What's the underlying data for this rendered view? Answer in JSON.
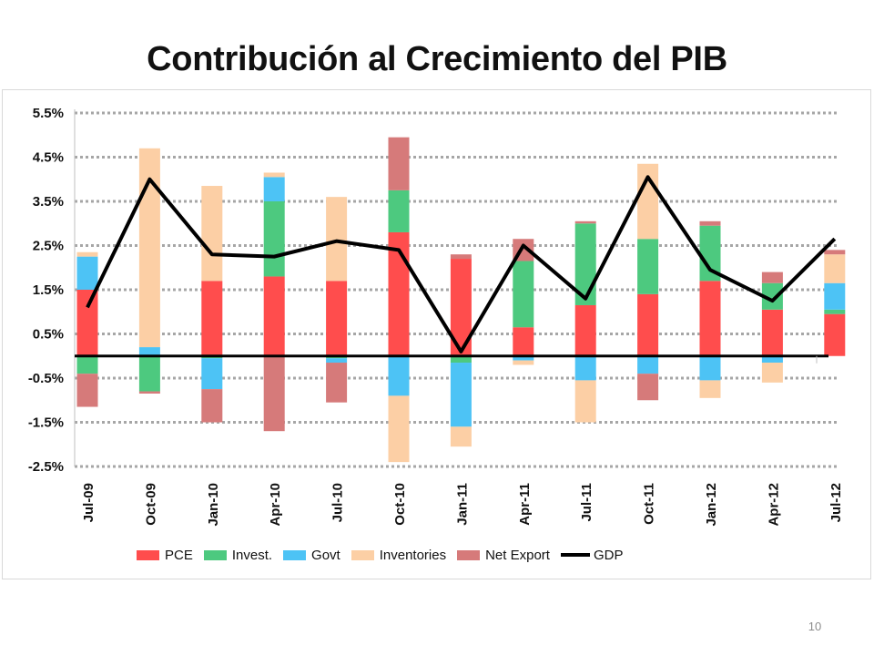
{
  "slide": {
    "title": "Contribución al Crecimiento del PIB",
    "page_number": "10"
  },
  "colors": {
    "PCE": "#ff4d4d",
    "Invest.": "#4dc97f",
    "Govt": "#4dc3f5",
    "Inventories": "#fccfa5",
    "Net Export": "#d67a7a",
    "GDP": "#000000"
  },
  "chart_data": {
    "type": "bar",
    "stacked": true,
    "title": "Contribución al Crecimiento del PIB",
    "categories": [
      "Jul-09",
      "Oct-09",
      "Jan-10",
      "Apr-10",
      "Jul-10",
      "Oct-10",
      "Jan-11",
      "Apr-11",
      "Jul-11",
      "Oct-11",
      "Jan-12",
      "Apr-12",
      "Jul-12"
    ],
    "series": [
      {
        "name": "PCE",
        "values": [
          1.5,
          0.0,
          1.7,
          1.8,
          1.7,
          2.8,
          2.2,
          0.65,
          1.15,
          1.4,
          1.7,
          1.05,
          0.95
        ]
      },
      {
        "name": "Invest.",
        "values": [
          -0.4,
          -0.8,
          -0.05,
          1.7,
          -0.05,
          0.95,
          -0.15,
          1.5,
          1.85,
          1.25,
          1.25,
          0.6,
          0.1
        ]
      },
      {
        "name": "Govt",
        "values": [
          0.75,
          0.2,
          -0.7,
          0.55,
          -0.1,
          -0.9,
          -1.45,
          -0.1,
          -0.55,
          -0.4,
          -0.55,
          -0.15,
          0.6
        ]
      },
      {
        "name": "Inventories",
        "values": [
          0.1,
          4.5,
          2.15,
          0.1,
          1.9,
          -1.5,
          -0.45,
          -0.1,
          -0.95,
          1.7,
          -0.4,
          -0.45,
          0.65
        ]
      },
      {
        "name": "Net Export",
        "values": [
          -0.75,
          -0.05,
          -0.75,
          -1.7,
          -0.9,
          1.2,
          0.1,
          0.5,
          0.05,
          -0.6,
          0.1,
          0.25,
          0.1
        ]
      }
    ],
    "line": {
      "name": "GDP",
      "values": [
        1.1,
        4.0,
        2.3,
        2.25,
        2.6,
        2.4,
        0.1,
        2.5,
        1.3,
        4.05,
        1.95,
        1.25,
        2.65
      ]
    },
    "ylim": [
      -2.5,
      5.5
    ],
    "yticks": [
      5.5,
      4.5,
      3.5,
      2.5,
      1.5,
      0.5,
      -0.5,
      -1.5,
      -2.5
    ],
    "ytick_labels": [
      "5.5%",
      "4.5%",
      "3.5%",
      "2.5%",
      "1.5%",
      "0.5%",
      "-0.5%",
      "-1.5%",
      "-2.5%"
    ],
    "grid": true,
    "legend_position": "bottom"
  }
}
